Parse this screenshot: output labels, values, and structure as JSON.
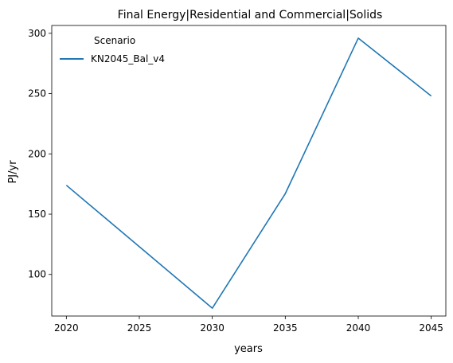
{
  "chart_data": {
    "type": "line",
    "title": "Final Energy|Residential and Commercial|Solids",
    "xlabel": "years",
    "ylabel": "PJ/yr",
    "x": [
      2020,
      2025,
      2030,
      2035,
      2040,
      2045
    ],
    "x_ticks": [
      "2020",
      "2025",
      "2030",
      "2035",
      "2040",
      "2045"
    ],
    "y_ticks": [
      "100",
      "150",
      "200",
      "250",
      "300"
    ],
    "y_tick_values": [
      100,
      150,
      200,
      250,
      300
    ],
    "xlim": [
      2019,
      2046
    ],
    "ylim": [
      65.5,
      306.5
    ],
    "grid": false,
    "legend": {
      "title": "Scenario",
      "placement": "top-left"
    },
    "series": [
      {
        "name": "KN2045_Bal_v4",
        "color": "#1f77b4",
        "values": [
          174,
          123,
          72,
          167,
          296,
          248
        ]
      }
    ]
  }
}
